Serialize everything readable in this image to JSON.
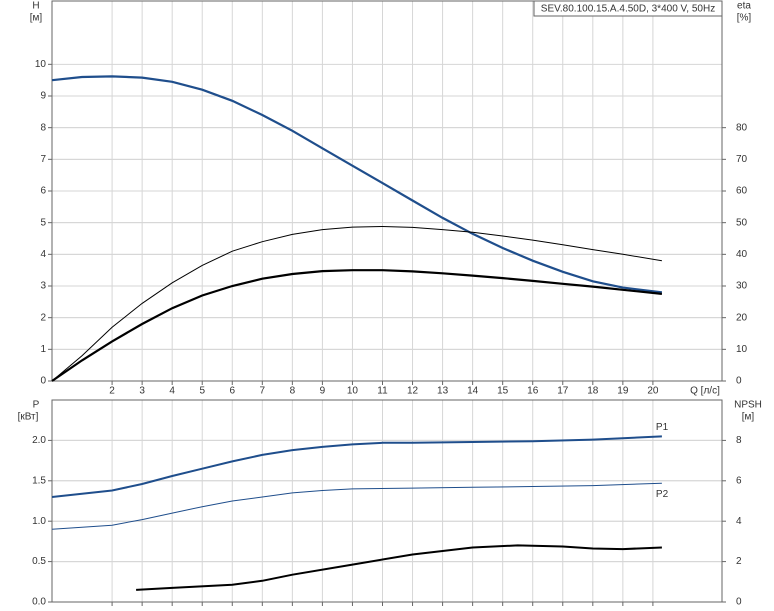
{
  "chart_data": [
    {
      "type": "line",
      "title": "SEV.80.100.15.A.4.50D, 3*400 V, 50Hz",
      "ylabel": "H",
      "yunit": "[м]",
      "y2label": "eta",
      "y2unit": "[%]",
      "xlabel": "Q [л/с]",
      "xlim": [
        0,
        22.3
      ],
      "xticks": [
        2,
        3,
        4,
        5,
        6,
        7,
        8,
        9,
        10,
        11,
        12,
        13,
        14,
        15,
        16,
        17,
        18,
        19,
        20
      ],
      "ylim": [
        0,
        12
      ],
      "yticks": [
        0,
        1,
        2,
        3,
        4,
        5,
        6,
        7,
        8,
        9,
        10
      ],
      "y2lim": [
        0,
        120
      ],
      "y2ticks": [
        0,
        10,
        20,
        30,
        40,
        50,
        60,
        70,
        80
      ],
      "grid": true,
      "show_xtick_labels": true,
      "series": [
        {
          "color": "#1f4e8c",
          "width": 2.2,
          "x": [
            0,
            1,
            2,
            3,
            4,
            5,
            6,
            7,
            8,
            9,
            10,
            11,
            12,
            13,
            14,
            15,
            16,
            17,
            18,
            19,
            20.3
          ],
          "values": [
            9.5,
            9.6,
            9.62,
            9.58,
            9.45,
            9.2,
            8.85,
            8.4,
            7.9,
            7.35,
            6.8,
            6.25,
            5.7,
            5.15,
            4.65,
            4.2,
            3.8,
            3.45,
            3.15,
            2.95,
            2.8
          ]
        },
        {
          "color": "#000000",
          "width": 1,
          "axis": "y2",
          "x": [
            0,
            1,
            2,
            3,
            4,
            5,
            6,
            7,
            8,
            9,
            10,
            11,
            12,
            13,
            14,
            15,
            16,
            17,
            18,
            19,
            20.3
          ],
          "values": [
            0,
            8,
            17,
            24.5,
            31,
            36.5,
            41,
            44,
            46.3,
            47.8,
            48.6,
            48.8,
            48.5,
            47.8,
            47,
            45.8,
            44.5,
            43,
            41.5,
            40,
            38
          ]
        },
        {
          "color": "#000000",
          "width": 2.2,
          "axis": "y2",
          "x": [
            0,
            1,
            2,
            3,
            4,
            5,
            6,
            7,
            8,
            9,
            10,
            11,
            12,
            13,
            14,
            15,
            16,
            17,
            18,
            19,
            20.3
          ],
          "values": [
            0,
            6.5,
            12.5,
            18,
            23,
            27,
            30,
            32.3,
            33.8,
            34.7,
            35,
            35,
            34.6,
            34,
            33.3,
            32.5,
            31.6,
            30.7,
            29.8,
            28.8,
            27.5
          ]
        }
      ]
    },
    {
      "type": "line",
      "ylabel": "P",
      "yunit": "[кВт]",
      "y2label": "NPSH",
      "y2unit": "[м]",
      "xlim": [
        0,
        22.3
      ],
      "xticks": [
        2,
        3,
        4,
        5,
        6,
        7,
        8,
        9,
        10,
        11,
        12,
        13,
        14,
        15,
        16,
        17,
        18,
        19,
        20
      ],
      "ylim": [
        0,
        2.5
      ],
      "yticks": [
        {
          "value": 0,
          "label": "0.0"
        },
        0.5,
        {
          "value": 1,
          "label": "1.0"
        },
        1.5,
        {
          "value": 2,
          "label": "2.0"
        }
      ],
      "y2lim": [
        0,
        10
      ],
      "y2ticks": [
        0,
        2,
        4,
        6,
        8
      ],
      "grid": true,
      "show_xtick_labels": false,
      "series": [
        {
          "name": "P1",
          "color": "#1f4e8c",
          "width": 2,
          "x": [
            0,
            2,
            3,
            4,
            5,
            6,
            7,
            8,
            9,
            10,
            11,
            12,
            14,
            16,
            18,
            20.3
          ],
          "values": [
            1.3,
            1.38,
            1.46,
            1.56,
            1.65,
            1.74,
            1.82,
            1.88,
            1.92,
            1.95,
            1.97,
            1.97,
            1.98,
            1.99,
            2.01,
            2.05
          ]
        },
        {
          "name": "P2",
          "color": "#1f4e8c",
          "width": 1,
          "x": [
            0,
            2,
            3,
            4,
            5,
            6,
            7,
            8,
            9,
            10,
            12,
            14,
            16,
            18,
            20.3
          ],
          "values": [
            0.9,
            0.95,
            1.02,
            1.1,
            1.18,
            1.25,
            1.3,
            1.35,
            1.38,
            1.4,
            1.41,
            1.42,
            1.43,
            1.44,
            1.47
          ]
        },
        {
          "color": "#000000",
          "width": 2,
          "axis": "y2",
          "x": [
            2.8,
            4,
            6,
            7,
            8,
            10,
            12,
            14,
            15.5,
            17,
            18,
            19,
            20.3
          ],
          "values": [
            0.6,
            0.7,
            0.85,
            1.05,
            1.35,
            1.85,
            2.35,
            2.7,
            2.8,
            2.75,
            2.65,
            2.62,
            2.7
          ]
        }
      ]
    }
  ]
}
